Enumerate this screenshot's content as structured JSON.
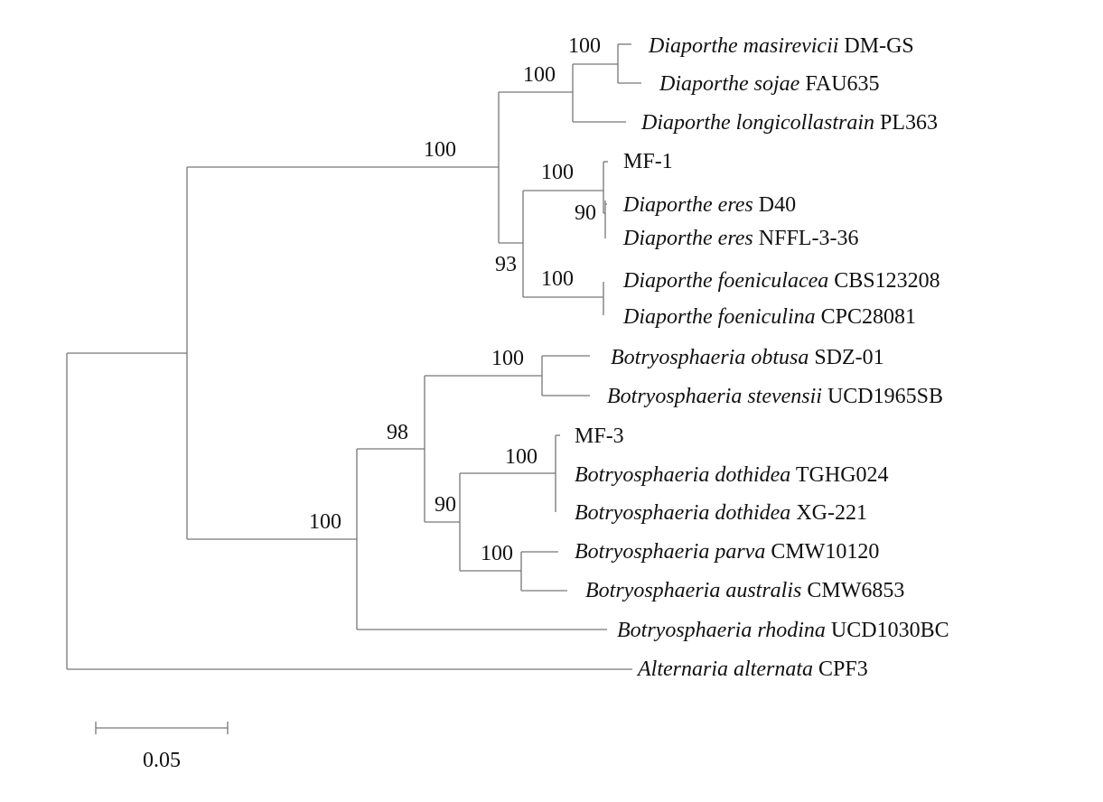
{
  "taxa": [
    {
      "species": "Diaporthe masirevicii",
      "strain": "DM-GS"
    },
    {
      "species": "Diaporthe sojae",
      "strain": "FAU635"
    },
    {
      "species": "Diaporthe longicollastrain",
      "strain": "PL363"
    },
    {
      "species": "",
      "strain": "MF-1"
    },
    {
      "species": "Diaporthe eres",
      "strain": "D40"
    },
    {
      "species": "Diaporthe eres",
      "strain": "NFFL-3-36"
    },
    {
      "species": "Diaporthe foeniculacea",
      "strain": "CBS123208"
    },
    {
      "species": "Diaporthe foeniculina",
      "strain": "CPC28081"
    },
    {
      "species": "Botryosphaeria obtusa",
      "strain": "SDZ-01"
    },
    {
      "species": "Botryosphaeria stevensii",
      "strain": "UCD1965SB"
    },
    {
      "species": "",
      "strain": "MF-3"
    },
    {
      "species": "Botryosphaeria dothidea",
      "strain": "TGHG024"
    },
    {
      "species": "Botryosphaeria dothidea",
      "strain": "XG-221"
    },
    {
      "species": "Botryosphaeria parva",
      "strain": "CMW10120"
    },
    {
      "species": "Botryosphaeria australis",
      "strain": "CMW6853"
    },
    {
      "species": "Botryosphaeria rhodina",
      "strain": "UCD1030BC"
    },
    {
      "species": "Alternaria alternata",
      "strain": "CPF3"
    }
  ],
  "bootstrap": [
    "100",
    "100",
    "100",
    "100",
    "90",
    "93",
    "100",
    "100",
    "98",
    "100",
    "90",
    "100",
    "100"
  ],
  "scale_bar": {
    "label": "0.05",
    "value": 0.05
  }
}
